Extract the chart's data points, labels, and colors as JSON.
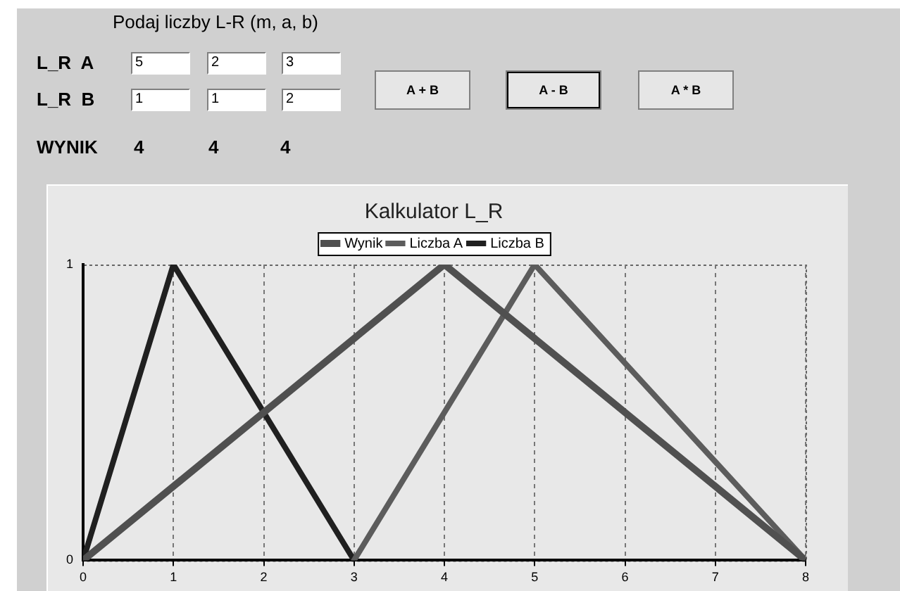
{
  "chart_data": {
    "type": "line",
    "title": "Kalkulator L_R",
    "series": [
      {
        "name": "Wynik",
        "color": "#505050",
        "x": [
          0,
          4,
          8
        ],
        "values": [
          0,
          1,
          0
        ]
      },
      {
        "name": "Liczba A",
        "color": "#5c5c5c",
        "x": [
          3,
          5,
          8
        ],
        "values": [
          0,
          1,
          0
        ]
      },
      {
        "name": "Liczba B",
        "color": "#202020",
        "x": [
          0,
          1,
          3
        ],
        "values": [
          0,
          1,
          0
        ]
      }
    ],
    "xlim": [
      0,
      8
    ],
    "xticks": [
      0,
      1,
      2,
      3,
      4,
      5,
      6,
      7,
      8
    ],
    "ylim": [
      0,
      1
    ],
    "yticks": [
      0,
      1
    ],
    "grid": "x",
    "legend": "top",
    "marker": "none",
    "line_style": "solid",
    "annotations": [
      "Podaj liczby L-R (m, a, b)",
      "L_R  A",
      "5",
      "2",
      "3",
      "L_R  B",
      "1",
      "1",
      "2",
      "A + B",
      "A - B",
      "A * B",
      "WYNIK",
      "4",
      "4",
      "4"
    ]
  }
}
